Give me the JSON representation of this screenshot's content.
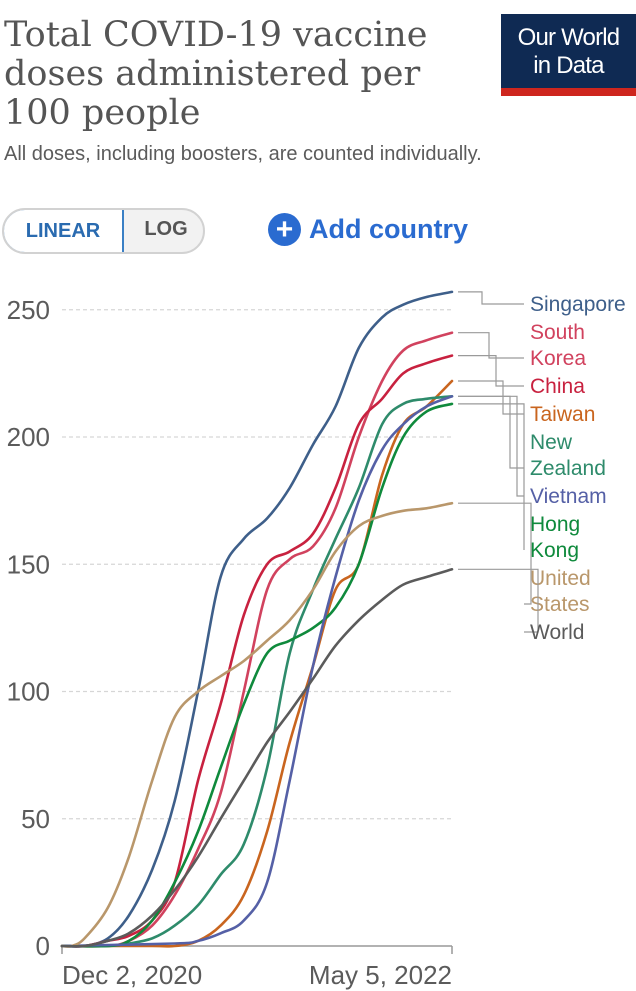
{
  "header": {
    "title": "Total COVID-19 vaccine doses administered per 100 people",
    "subtitle": "All doses, including boosters, are counted individually.",
    "logo_line1": "Our World",
    "logo_line2": "in Data"
  },
  "controls": {
    "linear_label": "LINEAR",
    "log_label": "LOG",
    "add_country_label": "Add country",
    "add_icon": "plus-circle-icon"
  },
  "chart_data": {
    "type": "line",
    "title": "Total COVID-19 vaccine doses administered per 100 people",
    "subtitle": "All doses, including boosters, are counted individually.",
    "x_tick_labels": [
      "Dec 2, 2020",
      "May 5, 2022"
    ],
    "xlim": [
      "2020-12-02",
      "2022-05-05"
    ],
    "y_ticks": [
      0,
      50,
      100,
      150,
      200,
      250
    ],
    "ylim": [
      0,
      257
    ],
    "grid": true,
    "legend_placement": "right, labels at line ends",
    "series": [
      {
        "name": "Singapore",
        "color": "#3e5f8a",
        "legend_lines": [
          "Singapore"
        ],
        "x": [
          "2020-12-02",
          "2021-01-01",
          "2021-02-01",
          "2021-03-01",
          "2021-04-01",
          "2021-05-01",
          "2021-06-01",
          "2021-07-01",
          "2021-08-01",
          "2021-09-01",
          "2021-10-01",
          "2021-11-01",
          "2021-12-01",
          "2022-01-01",
          "2022-02-01",
          "2022-03-01",
          "2022-04-01",
          "2022-05-05"
        ],
        "y": [
          0,
          0,
          3,
          12,
          30,
          57,
          100,
          145,
          160,
          168,
          180,
          197,
          212,
          235,
          247,
          252,
          255,
          257
        ]
      },
      {
        "name": "South Korea",
        "color": "#d1425e",
        "legend_lines": [
          "South",
          "Korea"
        ],
        "x": [
          "2020-12-02",
          "2021-02-01",
          "2021-03-01",
          "2021-04-01",
          "2021-05-01",
          "2021-06-01",
          "2021-07-01",
          "2021-08-01",
          "2021-09-01",
          "2021-10-01",
          "2021-11-01",
          "2021-12-01",
          "2022-01-01",
          "2022-02-01",
          "2022-03-01",
          "2022-04-01",
          "2022-05-05"
        ],
        "y": [
          0,
          0,
          2,
          8,
          20,
          38,
          60,
          100,
          140,
          152,
          157,
          172,
          200,
          222,
          234,
          238,
          241
        ]
      },
      {
        "name": "China",
        "color": "#c8213f",
        "legend_lines": [
          "China"
        ],
        "x": [
          "2020-12-02",
          "2021-01-01",
          "2021-02-01",
          "2021-03-01",
          "2021-04-01",
          "2021-05-01",
          "2021-06-01",
          "2021-07-01",
          "2021-08-01",
          "2021-09-01",
          "2021-10-01",
          "2021-11-01",
          "2021-12-01",
          "2022-01-01",
          "2022-02-01",
          "2022-03-01",
          "2022-04-01",
          "2022-05-05"
        ],
        "y": [
          0,
          0,
          2,
          4,
          10,
          25,
          65,
          95,
          130,
          150,
          155,
          162,
          180,
          205,
          215,
          225,
          229,
          232
        ]
      },
      {
        "name": "Taiwan",
        "color": "#c9651f",
        "legend_lines": [
          "Taiwan"
        ],
        "x": [
          "2020-12-02",
          "2021-04-01",
          "2021-05-01",
          "2021-06-01",
          "2021-07-01",
          "2021-08-01",
          "2021-09-01",
          "2021-10-01",
          "2021-11-01",
          "2021-12-01",
          "2022-01-01",
          "2022-02-01",
          "2022-03-01",
          "2022-04-01",
          "2022-05-05"
        ],
        "y": [
          0,
          0,
          0,
          2,
          8,
          20,
          45,
          80,
          110,
          140,
          150,
          185,
          205,
          212,
          222
        ]
      },
      {
        "name": "New Zealand",
        "color": "#2e8b6b",
        "legend_lines": [
          "New",
          "Zealand"
        ],
        "x": [
          "2020-12-02",
          "2021-02-01",
          "2021-03-01",
          "2021-04-01",
          "2021-05-01",
          "2021-06-01",
          "2021-07-01",
          "2021-08-01",
          "2021-09-01",
          "2021-10-01",
          "2021-11-01",
          "2021-12-01",
          "2022-01-01",
          "2022-02-01",
          "2022-03-01",
          "2022-04-01",
          "2022-05-05"
        ],
        "y": [
          0,
          0,
          1,
          3,
          8,
          16,
          28,
          40,
          70,
          115,
          140,
          160,
          180,
          205,
          213,
          215,
          216
        ]
      },
      {
        "name": "Hong Kong",
        "color": "#0f8a3c",
        "legend_lines": [
          "Hong",
          "Kong"
        ],
        "x": [
          "2020-12-02",
          "2021-02-01",
          "2021-03-01",
          "2021-04-01",
          "2021-05-01",
          "2021-06-01",
          "2021-07-01",
          "2021-08-01",
          "2021-09-01",
          "2021-10-01",
          "2021-11-01",
          "2021-12-01",
          "2022-01-01",
          "2022-02-01",
          "2022-03-01",
          "2022-04-01",
          "2022-05-05"
        ],
        "y": [
          0,
          0,
          2,
          10,
          25,
          45,
          70,
          95,
          115,
          120,
          125,
          133,
          150,
          180,
          200,
          210,
          213
        ]
      },
      {
        "name": "Vietnam",
        "color": "#5560a6",
        "legend_lines": [
          "Vietnam"
        ],
        "x": [
          "2020-12-02",
          "2021-05-01",
          "2021-06-01",
          "2021-07-01",
          "2021-08-01",
          "2021-09-01",
          "2021-10-01",
          "2021-11-01",
          "2021-12-01",
          "2022-01-01",
          "2022-02-01",
          "2022-03-01",
          "2022-04-01",
          "2022-05-05"
        ],
        "y": [
          0,
          1,
          2,
          5,
          10,
          25,
          65,
          110,
          145,
          175,
          195,
          205,
          212,
          216
        ]
      },
      {
        "name": "United States",
        "color": "#b9976b",
        "legend_lines": [
          "United",
          "States"
        ],
        "x": [
          "2020-12-02",
          "2020-12-15",
          "2021-01-01",
          "2021-02-01",
          "2021-03-01",
          "2021-04-01",
          "2021-05-01",
          "2021-06-01",
          "2021-07-01",
          "2021-08-01",
          "2021-09-01",
          "2021-10-01",
          "2021-11-01",
          "2021-12-01",
          "2022-01-01",
          "2022-02-01",
          "2022-03-01",
          "2022-04-01",
          "2022-05-05"
        ],
        "y": [
          0,
          0,
          3,
          15,
          35,
          65,
          90,
          100,
          106,
          112,
          120,
          128,
          140,
          155,
          165,
          169,
          171,
          172,
          174
        ]
      },
      {
        "name": "World",
        "color": "#5b5b5b",
        "legend_lines": [
          "World"
        ],
        "x": [
          "2020-12-02",
          "2021-01-01",
          "2021-02-01",
          "2021-03-01",
          "2021-04-01",
          "2021-05-01",
          "2021-06-01",
          "2021-07-01",
          "2021-08-01",
          "2021-09-01",
          "2021-10-01",
          "2021-11-01",
          "2021-12-01",
          "2022-01-01",
          "2022-02-01",
          "2022-03-01",
          "2022-04-01",
          "2022-05-05"
        ],
        "y": [
          0,
          0,
          2,
          5,
          12,
          22,
          35,
          50,
          65,
          80,
          92,
          105,
          118,
          128,
          136,
          142,
          145,
          148
        ]
      }
    ]
  }
}
